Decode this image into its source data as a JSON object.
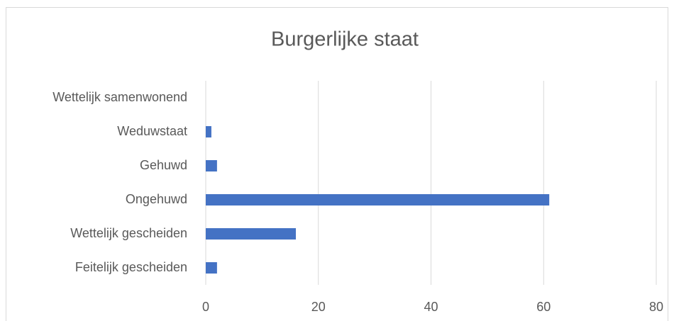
{
  "chart_data": {
    "type": "barh",
    "title": "Burgerlijke staat",
    "categories": [
      "Wettelijk samenwonend",
      "Weduwstaat",
      "Gehuwd",
      "Ongehuwd",
      "Wettelijk gescheiden",
      "Feitelijk gescheiden"
    ],
    "values": [
      0,
      1,
      2,
      61,
      16,
      2
    ],
    "color": "#4472c4",
    "xlim": [
      0,
      80
    ],
    "xticks": [
      0,
      20,
      40,
      60,
      80
    ],
    "grid": true
  }
}
